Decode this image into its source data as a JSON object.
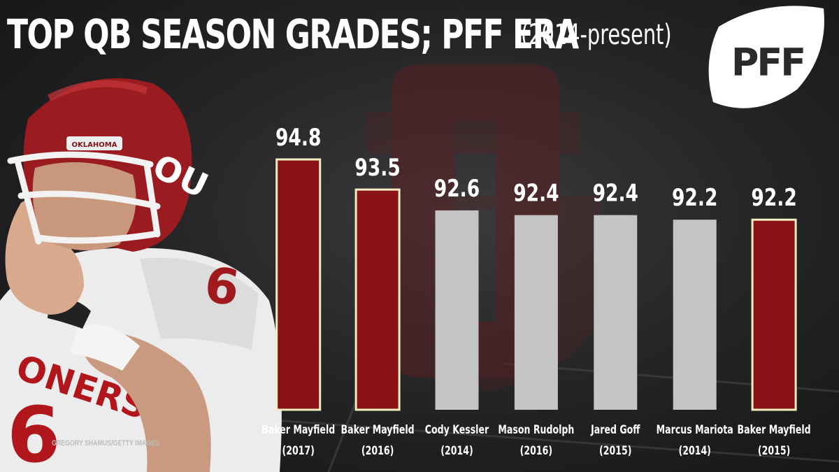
{
  "title": "TOP QB SEASON GRADES; PFF ERA",
  "subtitle": "(2014-present)",
  "logo_text": "PFF",
  "photo_credit": "GREGORY SHAMUS/GETTY IMAGES",
  "colors": {
    "highlight": "#8b1214",
    "highlight_border": "#f3eec2",
    "neutral": "#c4c4c4",
    "text": "#ffffff"
  },
  "chart_data": {
    "type": "bar",
    "title": "TOP QB SEASON GRADES; PFF ERA",
    "subtitle": "(2014-present)",
    "categories": [
      [
        "Baker Mayfield",
        "(2017)"
      ],
      [
        "Baker Mayfield",
        "(2016)"
      ],
      [
        "Cody Kessler",
        "(2014)"
      ],
      [
        "Mason Rudolph",
        "(2016)"
      ],
      [
        "Jared Goff",
        "(2015)"
      ],
      [
        "Marcus Mariota",
        "(2014)"
      ],
      [
        "Baker Mayfield",
        "(2015)"
      ]
    ],
    "values": [
      94.8,
      93.5,
      92.6,
      92.4,
      92.4,
      92.2,
      92.2
    ],
    "value_labels": [
      "94.8",
      "93.5",
      "92.6",
      "92.4",
      "92.4",
      "92.2",
      "92.2"
    ],
    "highlighted": [
      true,
      true,
      false,
      false,
      false,
      false,
      true
    ],
    "ylim": [
      0,
      100
    ],
    "grid": false,
    "legend": "none"
  }
}
